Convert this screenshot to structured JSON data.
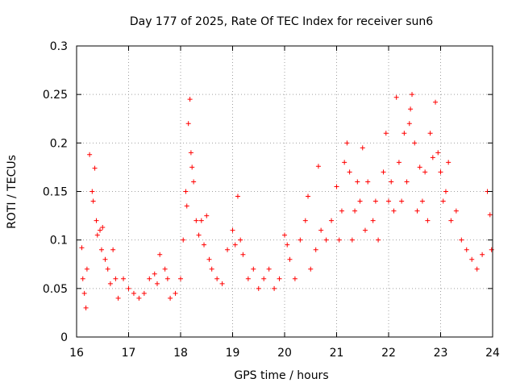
{
  "chart_data": {
    "type": "scatter",
    "title": "Day 177 of 2025, Rate Of TEC Index for receiver sun6",
    "xlabel": "GPS time / hours",
    "ylabel": "ROTI / TECUs",
    "xlim": [
      16,
      24
    ],
    "ylim": [
      0,
      0.3
    ],
    "xticks": [
      16,
      17,
      18,
      19,
      20,
      21,
      22,
      23,
      24
    ],
    "xtick_labels": [
      "16",
      "17",
      "18",
      "19",
      "20",
      "21",
      "22",
      "23",
      "24"
    ],
    "yticks": [
      0,
      0.05,
      0.1,
      0.15,
      0.2,
      0.25,
      0.3
    ],
    "ytick_labels": [
      "0",
      "0.05",
      "0.1",
      "0.15",
      "0.2",
      "0.25",
      "0.3"
    ],
    "grid": true,
    "marker": "+",
    "color": "#ff0000",
    "series": [
      {
        "name": "ROTI",
        "points": [
          [
            16.1,
            0.092
          ],
          [
            16.12,
            0.06
          ],
          [
            16.15,
            0.045
          ],
          [
            16.18,
            0.03
          ],
          [
            16.2,
            0.07
          ],
          [
            16.25,
            0.188
          ],
          [
            16.3,
            0.15
          ],
          [
            16.32,
            0.14
          ],
          [
            16.35,
            0.174
          ],
          [
            16.38,
            0.12
          ],
          [
            16.4,
            0.105
          ],
          [
            16.45,
            0.11
          ],
          [
            16.48,
            0.09
          ],
          [
            16.5,
            0.113
          ],
          [
            16.55,
            0.08
          ],
          [
            16.6,
            0.07
          ],
          [
            16.65,
            0.055
          ],
          [
            16.7,
            0.09
          ],
          [
            16.75,
            0.06
          ],
          [
            16.8,
            0.04
          ],
          [
            16.9,
            0.06
          ],
          [
            17.0,
            0.05
          ],
          [
            17.1,
            0.045
          ],
          [
            17.2,
            0.04
          ],
          [
            17.3,
            0.045
          ],
          [
            17.4,
            0.06
          ],
          [
            17.5,
            0.065
          ],
          [
            17.55,
            0.055
          ],
          [
            17.6,
            0.085
          ],
          [
            17.7,
            0.07
          ],
          [
            17.75,
            0.06
          ],
          [
            17.8,
            0.04
          ],
          [
            17.9,
            0.045
          ],
          [
            18.0,
            0.06
          ],
          [
            18.05,
            0.1
          ],
          [
            18.1,
            0.15
          ],
          [
            18.12,
            0.135
          ],
          [
            18.15,
            0.22
          ],
          [
            18.18,
            0.245
          ],
          [
            18.2,
            0.19
          ],
          [
            18.22,
            0.175
          ],
          [
            18.25,
            0.16
          ],
          [
            18.3,
            0.12
          ],
          [
            18.35,
            0.105
          ],
          [
            18.4,
            0.12
          ],
          [
            18.45,
            0.095
          ],
          [
            18.5,
            0.125
          ],
          [
            18.55,
            0.08
          ],
          [
            18.6,
            0.07
          ],
          [
            18.7,
            0.06
          ],
          [
            18.8,
            0.055
          ],
          [
            18.9,
            0.09
          ],
          [
            19.0,
            0.11
          ],
          [
            19.05,
            0.095
          ],
          [
            19.1,
            0.145
          ],
          [
            19.15,
            0.1
          ],
          [
            19.2,
            0.085
          ],
          [
            19.3,
            0.06
          ],
          [
            19.4,
            0.07
          ],
          [
            19.5,
            0.05
          ],
          [
            19.6,
            0.06
          ],
          [
            19.7,
            0.07
          ],
          [
            19.8,
            0.05
          ],
          [
            19.9,
            0.06
          ],
          [
            20.0,
            0.105
          ],
          [
            20.05,
            0.095
          ],
          [
            20.1,
            0.08
          ],
          [
            20.2,
            0.06
          ],
          [
            20.3,
            0.1
          ],
          [
            20.4,
            0.12
          ],
          [
            20.45,
            0.145
          ],
          [
            20.5,
            0.07
          ],
          [
            20.6,
            0.09
          ],
          [
            20.65,
            0.176
          ],
          [
            20.7,
            0.11
          ],
          [
            20.8,
            0.1
          ],
          [
            20.9,
            0.12
          ],
          [
            21.0,
            0.155
          ],
          [
            21.05,
            0.1
          ],
          [
            21.1,
            0.13
          ],
          [
            21.15,
            0.18
          ],
          [
            21.2,
            0.2
          ],
          [
            21.25,
            0.17
          ],
          [
            21.3,
            0.1
          ],
          [
            21.35,
            0.13
          ],
          [
            21.4,
            0.16
          ],
          [
            21.45,
            0.14
          ],
          [
            21.5,
            0.195
          ],
          [
            21.55,
            0.11
          ],
          [
            21.6,
            0.16
          ],
          [
            21.7,
            0.12
          ],
          [
            21.75,
            0.14
          ],
          [
            21.8,
            0.1
          ],
          [
            21.9,
            0.17
          ],
          [
            21.95,
            0.21
          ],
          [
            22.0,
            0.14
          ],
          [
            22.05,
            0.16
          ],
          [
            22.1,
            0.13
          ],
          [
            22.15,
            0.247
          ],
          [
            22.2,
            0.18
          ],
          [
            22.25,
            0.14
          ],
          [
            22.3,
            0.21
          ],
          [
            22.35,
            0.16
          ],
          [
            22.4,
            0.22
          ],
          [
            22.42,
            0.235
          ],
          [
            22.45,
            0.25
          ],
          [
            22.5,
            0.2
          ],
          [
            22.55,
            0.13
          ],
          [
            22.6,
            0.175
          ],
          [
            22.65,
            0.14
          ],
          [
            22.7,
            0.17
          ],
          [
            22.75,
            0.12
          ],
          [
            22.8,
            0.21
          ],
          [
            22.85,
            0.185
          ],
          [
            22.9,
            0.242
          ],
          [
            22.95,
            0.19
          ],
          [
            23.0,
            0.17
          ],
          [
            23.05,
            0.14
          ],
          [
            23.1,
            0.15
          ],
          [
            23.15,
            0.18
          ],
          [
            23.2,
            0.12
          ],
          [
            23.3,
            0.13
          ],
          [
            23.4,
            0.1
          ],
          [
            23.5,
            0.09
          ],
          [
            23.6,
            0.08
          ],
          [
            23.7,
            0.07
          ],
          [
            23.8,
            0.085
          ],
          [
            23.9,
            0.15
          ],
          [
            23.95,
            0.126
          ],
          [
            23.98,
            0.09
          ]
        ]
      }
    ]
  }
}
